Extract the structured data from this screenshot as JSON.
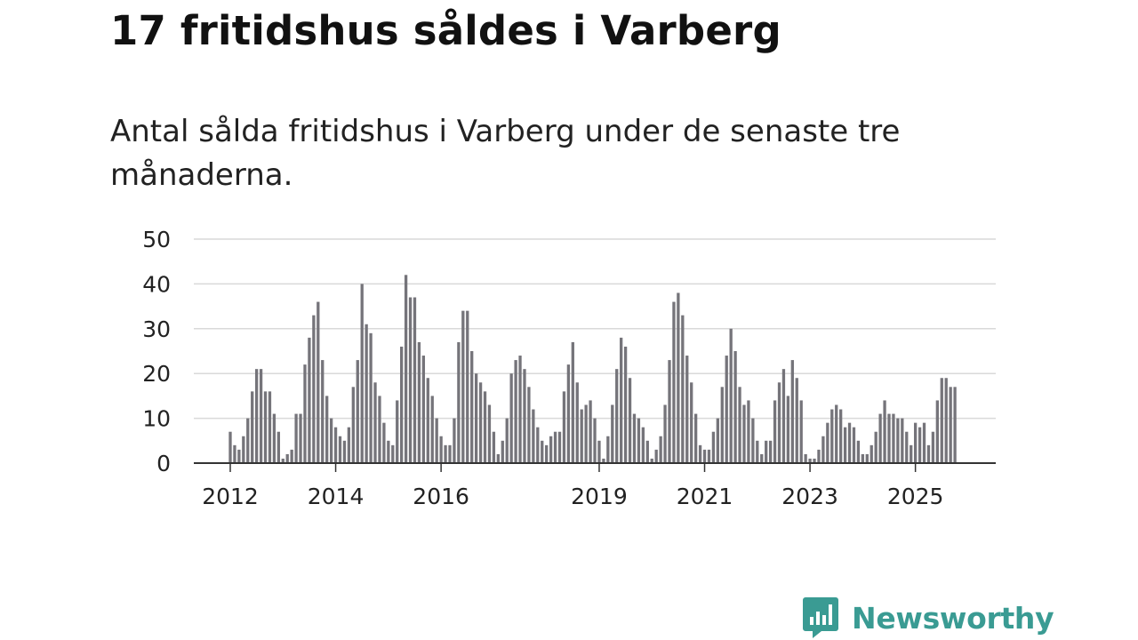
{
  "title": "17 fritidshus såldes i Varberg",
  "subtitle": "Antal sålda fritidshus i Varberg under de senaste tre månaderna.",
  "brand": {
    "name": "Newsworthy",
    "color": "#3a9b93",
    "icon": "bar-chart-speech-bubble-icon"
  },
  "colors": {
    "bar": "#75747a",
    "highlight": "#1a9e99",
    "grid": "#d9d9d9",
    "axis": "#333333"
  },
  "chart_data": {
    "type": "bar",
    "title": "17 fritidshus såldes i Varberg",
    "xlabel": "",
    "ylabel": "",
    "ylim": [
      0,
      50
    ],
    "yticks": [
      0,
      10,
      20,
      30,
      40,
      50
    ],
    "grid": true,
    "x_start": "2012-01",
    "x_end": "2025-11",
    "year_labels": [
      "2012",
      "2014",
      "2016",
      "2019",
      "2021",
      "2023",
      "2025"
    ],
    "highlight_label": "17",
    "values": [
      7,
      4,
      3,
      6,
      10,
      16,
      21,
      21,
      16,
      16,
      11,
      7,
      1,
      2,
      3,
      11,
      11,
      22,
      28,
      33,
      36,
      23,
      15,
      10,
      8,
      6,
      5,
      8,
      17,
      23,
      40,
      31,
      29,
      18,
      15,
      9,
      5,
      4,
      14,
      26,
      42,
      37,
      37,
      27,
      24,
      19,
      15,
      10,
      6,
      4,
      4,
      10,
      27,
      34,
      34,
      25,
      20,
      18,
      16,
      13,
      7,
      2,
      5,
      10,
      20,
      23,
      24,
      21,
      17,
      12,
      8,
      5,
      4,
      6,
      7,
      7,
      16,
      22,
      27,
      18,
      12,
      13,
      14,
      10,
      5,
      1,
      6,
      13,
      21,
      28,
      26,
      19,
      11,
      10,
      8,
      5,
      1,
      3,
      6,
      13,
      23,
      36,
      38,
      33,
      24,
      18,
      11,
      4,
      3,
      3,
      7,
      10,
      17,
      24,
      30,
      25,
      17,
      13,
      14,
      10,
      5,
      2,
      5,
      5,
      14,
      18,
      21,
      15,
      23,
      19,
      14,
      2,
      1,
      1,
      3,
      6,
      9,
      12,
      13,
      12,
      8,
      9,
      8,
      5,
      2,
      2,
      4,
      7,
      11,
      14,
      11,
      11,
      10,
      10,
      7,
      4,
      9,
      8,
      9,
      4,
      7,
      14,
      19,
      19,
      17,
      17
    ],
    "highlight_index": 166
  }
}
